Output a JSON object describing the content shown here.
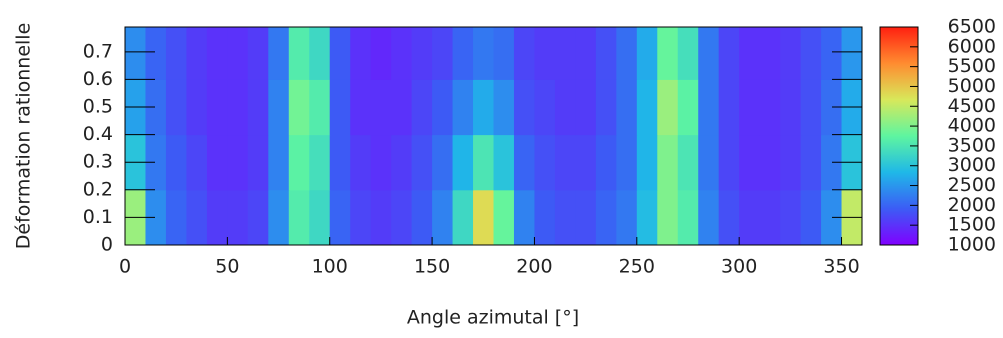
{
  "chart_data": {
    "type": "heatmap",
    "xlabel": "Angle azimutal [°]",
    "ylabel": "Déformation rationnelle",
    "xbins": [
      0,
      10,
      20,
      30,
      40,
      50,
      60,
      70,
      80,
      90,
      100,
      110,
      120,
      130,
      140,
      150,
      160,
      170,
      180,
      190,
      200,
      210,
      220,
      230,
      240,
      250,
      260,
      270,
      280,
      290,
      300,
      310,
      320,
      330,
      340,
      350,
      360
    ],
    "ybins": [
      0,
      0.2,
      0.4,
      0.6,
      0.79
    ],
    "z": [
      [
        4200,
        2400,
        2000,
        1800,
        1600,
        1600,
        1700,
        2400,
        3600,
        3300,
        2000,
        1700,
        1600,
        1700,
        1900,
        2300,
        3300,
        4800,
        3800,
        2300,
        1900,
        1800,
        1800,
        2000,
        2200,
        2900,
        4000,
        3600,
        2300,
        1800,
        1600,
        1600,
        1700,
        1900,
        2400,
        4500
      ],
      [
        3000,
        2200,
        1900,
        1700,
        1500,
        1500,
        1600,
        2300,
        3700,
        3400,
        1900,
        1600,
        1500,
        1600,
        1800,
        2100,
        2800,
        3500,
        3000,
        2000,
        1800,
        1700,
        1700,
        1900,
        2100,
        2800,
        4000,
        3500,
        2200,
        1700,
        1500,
        1500,
        1600,
        1800,
        2200,
        3000
      ],
      [
        2600,
        2100,
        1800,
        1600,
        1500,
        1500,
        1600,
        2300,
        3900,
        3600,
        1900,
        1500,
        1500,
        1500,
        1700,
        1900,
        2300,
        2700,
        2400,
        1800,
        1700,
        1600,
        1600,
        1800,
        2100,
        2800,
        4200,
        3700,
        2200,
        1700,
        1500,
        1500,
        1600,
        1800,
        2100,
        2700
      ],
      [
        2400,
        2000,
        1800,
        1600,
        1500,
        1500,
        1600,
        2200,
        3600,
        3300,
        1900,
        1500,
        1400,
        1500,
        1600,
        1700,
        2000,
        2200,
        2100,
        1700,
        1600,
        1600,
        1600,
        1800,
        2100,
        2700,
        3800,
        3400,
        2200,
        1700,
        1500,
        1500,
        1600,
        1800,
        2000,
        2500
      ]
    ],
    "xlim": [
      0,
      360
    ],
    "xticks": [
      0,
      50,
      100,
      150,
      200,
      250,
      300,
      350
    ],
    "ylim": [
      0,
      0.79
    ],
    "yticks": [
      0,
      0.1,
      0.2,
      0.3,
      0.4,
      0.5,
      0.6,
      0.7
    ],
    "zlim": [
      1000,
      6500
    ],
    "zticks": [
      1000,
      1500,
      2000,
      2500,
      3000,
      3500,
      4000,
      4500,
      5000,
      5500,
      6000,
      6500
    ],
    "colorscale": [
      "#8000ff",
      "#3c5cf5",
      "#1fb8e8",
      "#5ef5a0",
      "#d8e85a",
      "#ff8c30",
      "#ff2010"
    ]
  }
}
